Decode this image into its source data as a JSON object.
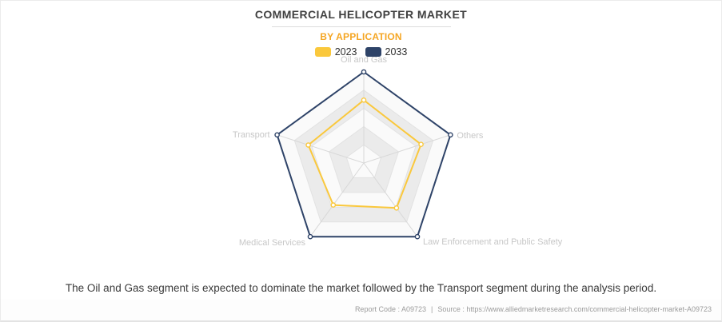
{
  "header": {
    "title": "COMMERCIAL HELICOPTER MARKET",
    "subtitle": "BY APPLICATION"
  },
  "legend": [
    {
      "label": "2023",
      "color": "#FAC83C"
    },
    {
      "label": "2033",
      "color": "#2E4368"
    }
  ],
  "chart_data": {
    "type": "radar",
    "title": "COMMERCIAL HELICOPTER MARKET",
    "subtitle": "BY APPLICATION",
    "categories": [
      "Oil and Gas",
      "Others",
      "Law Enforcement and Public Safety",
      "Medical Services",
      "Transport"
    ],
    "series": [
      {
        "name": "2023",
        "color": "#FAC83C",
        "values": [
          0.69,
          0.66,
          0.61,
          0.57,
          0.64
        ]
      },
      {
        "name": "2033",
        "color": "#2E4368",
        "values": [
          1.0,
          1.0,
          1.0,
          1.0,
          1.0
        ]
      }
    ],
    "scale": {
      "min": 0,
      "max": 1.0,
      "rings": 5
    },
    "grid": {
      "band_colors": [
        "#fafafa",
        "#ebebeb"
      ],
      "ring_stroke": "#e2e2e2",
      "spoke_stroke": "#d8d8d8"
    },
    "axis_label_color": "#c7c7c7",
    "legend_position": "top"
  },
  "insight": "The Oil and Gas segment is expected to dominate the market followed by the Transport segment during the analysis period.",
  "footer": {
    "report_code": "Report Code : A09723",
    "separator": "|",
    "source": "Source : https://www.alliedmarketresearch.com/commercial-helicopter-market-A09723"
  }
}
